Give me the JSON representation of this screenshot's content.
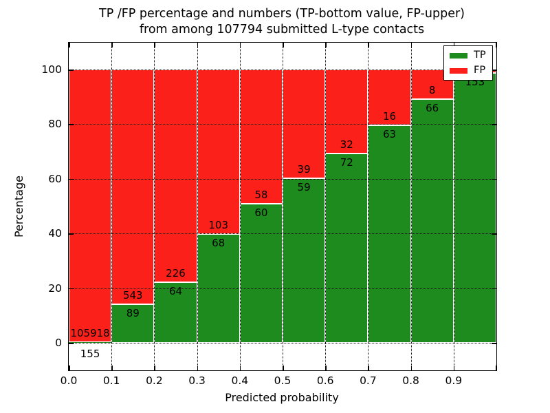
{
  "title": {
    "line1": "TP /FP percentage and numbers (TP-bottom value, FP-upper)",
    "line2": "from among 107794 submitted L-type contacts"
  },
  "axes": {
    "xlabel": "Predicted probability",
    "ylabel": "Percentage",
    "x_tick_labels": [
      "0.0",
      "0.1",
      "0.2",
      "0.3",
      "0.4",
      "0.5",
      "0.6",
      "0.7",
      "0.8",
      "0.9"
    ],
    "y_tick_labels": [
      "0",
      "20",
      "40",
      "60",
      "80",
      "100"
    ],
    "y_tick_values": [
      0,
      20,
      40,
      60,
      80,
      100
    ]
  },
  "legend": {
    "items": [
      {
        "label": "TP",
        "color": "#1e8b1e"
      },
      {
        "label": "FP",
        "color": "#fb2019"
      }
    ],
    "position": "upper right"
  },
  "colors": {
    "tp": "#1e8b1e",
    "fp": "#fb2019",
    "grid": "#000000",
    "background": "#ffffff"
  },
  "chart_data": {
    "type": "bar",
    "stacked": true,
    "normalized_to_percent": true,
    "title": "TP /FP percentage and numbers (TP-bottom value, FP-upper) from among 107794 submitted L-type contacts",
    "xlabel": "Predicted probability",
    "ylabel": "Percentage",
    "xlim": [
      0.0,
      1.0
    ],
    "ylim": [
      -10,
      110
    ],
    "grid": true,
    "legend_position": "upper right",
    "total_contacts": 107794,
    "series_names": [
      "TP",
      "FP"
    ],
    "bins": [
      {
        "range": [
          0.0,
          0.1
        ],
        "tp": 155,
        "fp": 105918,
        "tp_pct": 0.15,
        "fp_label": "105918",
        "tp_label": "155"
      },
      {
        "range": [
          0.1,
          0.2
        ],
        "tp": 89,
        "fp": 543,
        "tp_pct": 14.1,
        "fp_label": "543",
        "tp_label": "89"
      },
      {
        "range": [
          0.2,
          0.3
        ],
        "tp": 64,
        "fp": 226,
        "tp_pct": 22.1,
        "fp_label": "226",
        "tp_label": "64"
      },
      {
        "range": [
          0.3,
          0.4
        ],
        "tp": 68,
        "fp": 103,
        "tp_pct": 39.8,
        "fp_label": "103",
        "tp_label": "68"
      },
      {
        "range": [
          0.4,
          0.5
        ],
        "tp": 60,
        "fp": 58,
        "tp_pct": 50.8,
        "fp_label": "58",
        "tp_label": "60"
      },
      {
        "range": [
          0.5,
          0.6
        ],
        "tp": 59,
        "fp": 39,
        "tp_pct": 60.2,
        "fp_label": "39",
        "tp_label": "59"
      },
      {
        "range": [
          0.6,
          0.7
        ],
        "tp": 72,
        "fp": 32,
        "tp_pct": 69.2,
        "fp_label": "32",
        "tp_label": "72"
      },
      {
        "range": [
          0.7,
          0.8
        ],
        "tp": 63,
        "fp": 16,
        "tp_pct": 79.7,
        "fp_label": "16",
        "tp_label": "63"
      },
      {
        "range": [
          0.8,
          0.9
        ],
        "tp": 66,
        "fp": 8,
        "tp_pct": 89.2,
        "fp_label": "8",
        "tp_label": "66"
      },
      {
        "range": [
          0.9,
          1.0
        ],
        "tp": 153,
        "fp": null,
        "tp_pct": 98.7,
        "fp_label": null,
        "tp_label": "153",
        "fp_label_occluded_by_legend": true
      }
    ]
  }
}
